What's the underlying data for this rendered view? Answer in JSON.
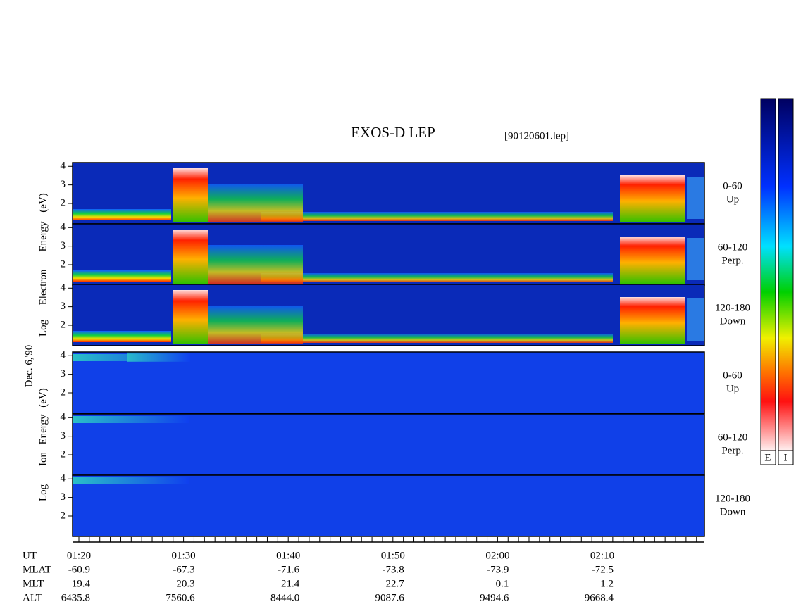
{
  "header": {
    "title": "EXOS-D LEP",
    "file": "[90120601.lep]"
  },
  "date": "Dec. 6,'90",
  "electron_axis_label": [
    "Log",
    "Electron",
    "Energy",
    "(eV)"
  ],
  "ion_axis_label": [
    "Log",
    "Ion",
    "Energy",
    "(eV)"
  ],
  "panels": [
    {
      "species": "electron",
      "pitch_angle": "0-60",
      "direction": "Up",
      "ylim": [
        0.9,
        4.2
      ],
      "yticks": [
        2,
        3,
        4
      ]
    },
    {
      "species": "electron",
      "pitch_angle": "60-120",
      "direction": "Perp.",
      "ylim": [
        0.9,
        4.2
      ],
      "yticks": [
        2,
        3,
        4
      ]
    },
    {
      "species": "electron",
      "pitch_angle": "120-180",
      "direction": "Down",
      "ylim": [
        0.9,
        4.2
      ],
      "yticks": [
        2,
        3,
        4
      ]
    },
    {
      "species": "ion",
      "pitch_angle": "0-60",
      "direction": "Up",
      "ylim": [
        0.9,
        4.2
      ],
      "yticks": [
        2,
        3,
        4
      ]
    },
    {
      "species": "ion",
      "pitch_angle": "60-120",
      "direction": "Perp.",
      "ylim": [
        0.9,
        4.2
      ],
      "yticks": [
        2,
        3,
        4
      ]
    },
    {
      "species": "ion",
      "pitch_angle": "120-180",
      "direction": "Down",
      "ylim": [
        0.9,
        4.2
      ],
      "yticks": [
        2,
        3,
        4
      ]
    }
  ],
  "ephemeris": {
    "UT": {
      "label": "UT",
      "values": [
        "01:20",
        "01:30",
        "01:40",
        "01:50",
        "02:00",
        "02:10"
      ]
    },
    "rows": [
      {
        "label": "MLAT",
        "values": [
          "-60.9",
          "-67.3",
          "-71.6",
          "-73.8",
          "-73.9",
          "-72.5"
        ]
      },
      {
        "label": "MLT",
        "values": [
          "19.4",
          "20.3",
          "21.4",
          "22.7",
          "0.1",
          "1.2"
        ]
      },
      {
        "label": "ALT",
        "values": [
          "6435.8",
          "7560.6",
          "8444.0",
          "9087.6",
          "9494.6",
          "9668.4"
        ]
      }
    ]
  },
  "colorbars": [
    "E",
    "I"
  ]
}
